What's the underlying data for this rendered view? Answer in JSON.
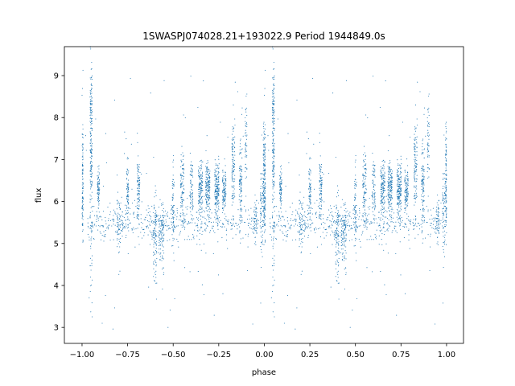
{
  "chart_data": {
    "type": "scatter",
    "title": "1SWASPJ074028.21+193022.9 Period 1944849.0s",
    "xlabel": "phase",
    "ylabel": "flux",
    "xlim": [
      -1.097,
      1.093
    ],
    "ylim": [
      2.62,
      9.69
    ],
    "xticks": [
      -1.0,
      -0.75,
      -0.5,
      -0.25,
      0.0,
      0.25,
      0.5,
      0.75,
      1.0
    ],
    "xtick_labels": [
      "−1.00",
      "−0.75",
      "−0.50",
      "−0.25",
      "0.00",
      "0.25",
      "0.50",
      "0.75",
      "1.00"
    ],
    "yticks": [
      3,
      4,
      5,
      6,
      7,
      8,
      9
    ],
    "ytick_labels": [
      "3",
      "4",
      "5",
      "6",
      "7",
      "8",
      "9"
    ],
    "grid": false,
    "color": "#1f77b4",
    "note_points": "phase-folded light curve, pattern repeats with period 1 in phase; points described as clusters (phase center, phase width, mean flux, flux sd, count)",
    "clusters": [
      {
        "phase": -1.0,
        "width": 0.006,
        "flux": 6.3,
        "sd": 0.55,
        "n": 170
      },
      {
        "phase": -1.0,
        "width": 0.006,
        "flux": 7.4,
        "sd": 0.6,
        "n": 40
      },
      {
        "phase": -0.95,
        "width": 0.006,
        "flux": 7.6,
        "sd": 0.9,
        "n": 170
      },
      {
        "phase": -0.95,
        "width": 0.006,
        "flux": 5.3,
        "sd": 0.8,
        "n": 50
      },
      {
        "phase": -0.91,
        "width": 0.006,
        "flux": 6.3,
        "sd": 0.25,
        "n": 80
      },
      {
        "phase": -0.8,
        "width": 0.01,
        "flux": 5.4,
        "sd": 0.4,
        "n": 60
      },
      {
        "phase": -0.75,
        "width": 0.006,
        "flux": 6.3,
        "sd": 0.3,
        "n": 70
      },
      {
        "phase": -0.69,
        "width": 0.008,
        "flux": 6.3,
        "sd": 0.35,
        "n": 90
      },
      {
        "phase": -0.6,
        "width": 0.01,
        "flux": 5.1,
        "sd": 0.5,
        "n": 90
      },
      {
        "phase": -0.565,
        "width": 0.015,
        "flux": 5.2,
        "sd": 0.45,
        "n": 100
      },
      {
        "phase": -0.5,
        "width": 0.006,
        "flux": 5.9,
        "sd": 0.5,
        "n": 70
      },
      {
        "phase": -0.45,
        "width": 0.01,
        "flux": 6.2,
        "sd": 0.5,
        "n": 100
      },
      {
        "phase": -0.4,
        "width": 0.008,
        "flux": 6.3,
        "sd": 0.4,
        "n": 70
      },
      {
        "phase": -0.35,
        "width": 0.012,
        "flux": 6.3,
        "sd": 0.3,
        "n": 150
      },
      {
        "phase": -0.31,
        "width": 0.012,
        "flux": 6.3,
        "sd": 0.3,
        "n": 170
      },
      {
        "phase": -0.26,
        "width": 0.012,
        "flux": 6.3,
        "sd": 0.3,
        "n": 170
      },
      {
        "phase": -0.22,
        "width": 0.01,
        "flux": 6.2,
        "sd": 0.3,
        "n": 110
      },
      {
        "phase": -0.17,
        "width": 0.008,
        "flux": 6.8,
        "sd": 0.6,
        "n": 110
      },
      {
        "phase": -0.13,
        "width": 0.008,
        "flux": 6.4,
        "sd": 0.5,
        "n": 100
      },
      {
        "phase": -0.1,
        "width": 0.005,
        "flux": 7.3,
        "sd": 0.5,
        "n": 50
      },
      {
        "phase": -0.05,
        "width": 0.01,
        "flux": 5.5,
        "sd": 0.25,
        "n": 50
      },
      {
        "phase": -0.015,
        "width": 0.008,
        "flux": 5.7,
        "sd": 0.6,
        "n": 70
      },
      {
        "phase": -0.5,
        "width": 0.47,
        "flux": 5.5,
        "sd": 0.22,
        "n": 550
      }
    ],
    "outliers": {
      "phase_range": [
        -1.0,
        0.0
      ],
      "flux_range": [
        2.9,
        9.0
      ],
      "n": 80
    }
  }
}
